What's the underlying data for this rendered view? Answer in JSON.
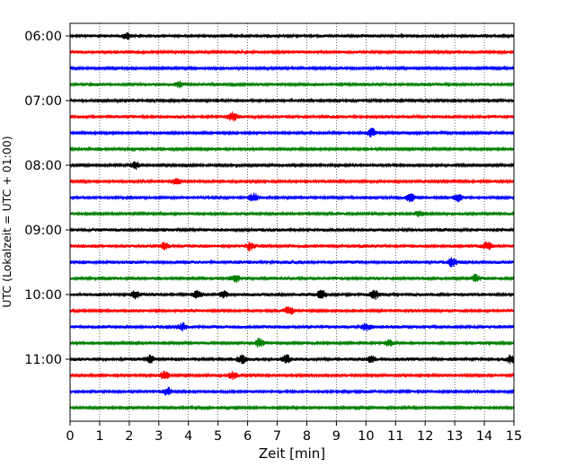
{
  "chart_data": {
    "type": "line",
    "xlabel": "Zeit  [min]",
    "ylabel": "UTC (Lokalzeit = UTC + 01:00)",
    "xlim": [
      0,
      15
    ],
    "x_ticks": [
      "0",
      "1",
      "2",
      "3",
      "4",
      "5",
      "6",
      "7",
      "8",
      "9",
      "10",
      "11",
      "12",
      "13",
      "14",
      "15"
    ],
    "y_tick_labels": [
      "06:00",
      "07:00",
      "08:00",
      "09:00",
      "10:00",
      "11:00"
    ],
    "grid": "vertical dotted lines at each minute",
    "trace_interval_minutes": 15,
    "trace_start_times": [
      "06:00",
      "06:15",
      "06:30",
      "06:45",
      "07:00",
      "07:15",
      "07:30",
      "07:45",
      "08:00",
      "08:15",
      "08:30",
      "08:45",
      "09:00",
      "09:15",
      "09:30",
      "09:45",
      "10:00",
      "10:15",
      "10:30",
      "10:45",
      "11:00",
      "11:15",
      "11:30",
      "11:45"
    ],
    "trace_colors": [
      "#000000",
      "#ff0000",
      "#0000ff",
      "#008000"
    ],
    "seismic_bursts_min": {
      "06:00": [
        1.9
      ],
      "06:15": [],
      "06:30": [],
      "06:45": [
        3.7
      ],
      "07:00": [],
      "07:15": [
        5.5
      ],
      "07:30": [
        10.2
      ],
      "07:45": [],
      "08:00": [
        2.2
      ],
      "08:15": [
        3.6
      ],
      "08:30": [
        6.2,
        11.5,
        13.1
      ],
      "08:45": [
        11.8
      ],
      "09:00": [],
      "09:15": [
        3.2,
        6.1,
        14.1
      ],
      "09:30": [
        12.9
      ],
      "09:45": [
        5.6,
        13.7
      ],
      "10:00": [
        2.2,
        4.3,
        5.2,
        8.5,
        10.3
      ],
      "10:15": [
        7.4
      ],
      "10:30": [
        3.8,
        10.0
      ],
      "10:45": [
        6.4,
        10.8
      ],
      "11:00": [
        2.7,
        5.8,
        7.3,
        10.2,
        14.9
      ],
      "11:15": [
        3.2,
        5.5
      ],
      "11:30": [
        3.3
      ],
      "11:45": []
    }
  }
}
